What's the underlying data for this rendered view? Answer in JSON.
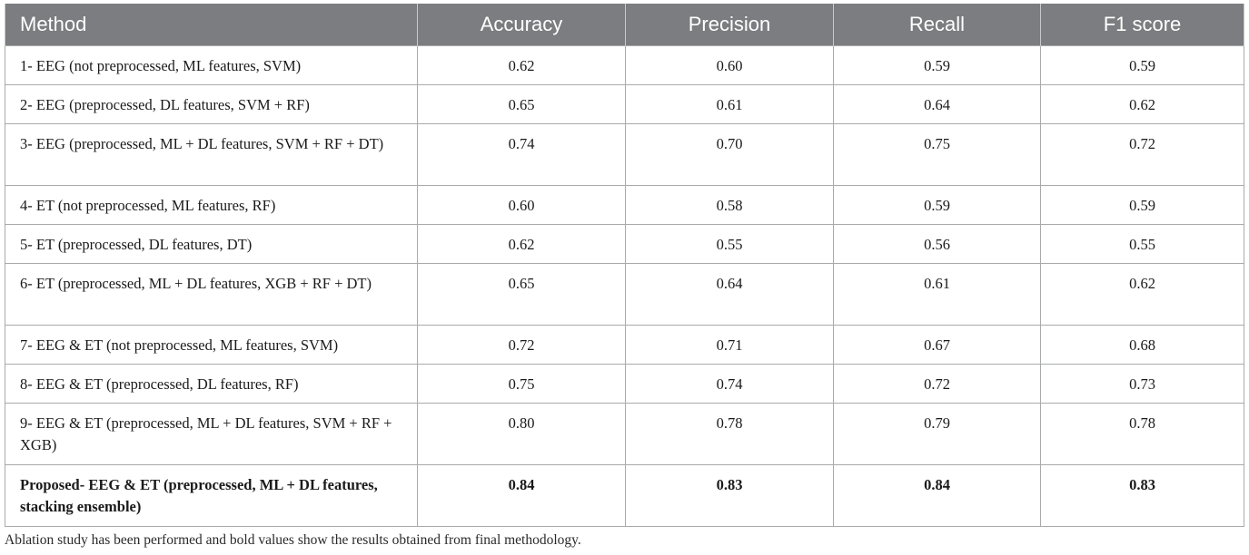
{
  "table": {
    "headers": [
      "Method",
      "Accuracy",
      "Precision",
      "Recall",
      "F1 score"
    ],
    "rows": [
      {
        "method": "1- EEG (not preprocessed, ML features, SVM)",
        "accuracy": "0.62",
        "precision": "0.60",
        "recall": "0.59",
        "f1": "0.59"
      },
      {
        "method": "2- EEG (preprocessed, DL features, SVM + RF)",
        "accuracy": "0.65",
        "precision": "0.61",
        "recall": "0.64",
        "f1": "0.62"
      },
      {
        "method": "3- EEG (preprocessed, ML + DL features, SVM + RF + DT)",
        "accuracy": "0.74",
        "precision": "0.70",
        "recall": "0.75",
        "f1": "0.72"
      },
      {
        "method": "4- ET (not preprocessed, ML features, RF)",
        "accuracy": "0.60",
        "precision": "0.58",
        "recall": "0.59",
        "f1": "0.59"
      },
      {
        "method": "5- ET (preprocessed, DL features, DT)",
        "accuracy": "0.62",
        "precision": "0.55",
        "recall": "0.56",
        "f1": "0.55"
      },
      {
        "method": "6- ET (preprocessed, ML + DL features, XGB + RF + DT)",
        "accuracy": "0.65",
        "precision": "0.64",
        "recall": "0.61",
        "f1": "0.62"
      },
      {
        "method": "7- EEG & ET (not preprocessed, ML features, SVM)",
        "accuracy": "0.72",
        "precision": "0.71",
        "recall": "0.67",
        "f1": "0.68"
      },
      {
        "method": "8- EEG & ET (preprocessed, DL features, RF)",
        "accuracy": "0.75",
        "precision": "0.74",
        "recall": "0.72",
        "f1": "0.73"
      },
      {
        "method": "9- EEG & ET (preprocessed, ML + DL features, SVM + RF + XGB)",
        "accuracy": "0.80",
        "precision": "0.78",
        "recall": "0.79",
        "f1": "0.78"
      },
      {
        "method": "Proposed- EEG & ET (preprocessed, ML + DL features, stacking ensemble)",
        "accuracy": "0.84",
        "precision": "0.83",
        "recall": "0.84",
        "f1": "0.83"
      }
    ]
  },
  "footnote": "Ablation study has been performed and bold values show the results obtained from final methodology.",
  "colors": {
    "header_background": "#7b7d80",
    "header_text": "#ffffff",
    "border": "#a9aaab"
  }
}
